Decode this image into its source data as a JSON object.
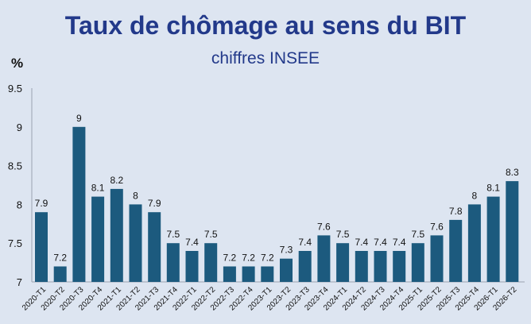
{
  "header": {
    "title": "Taux de chômage au sens du BIT",
    "subtitle": "chiffres INSEE",
    "unit": "%"
  },
  "colors": {
    "bar": "#1c5a7e",
    "title": "#22398a",
    "background": "#dde5f1"
  },
  "chart_data": {
    "type": "bar",
    "title": "Taux de chômage au sens du BIT",
    "subtitle": "chiffres INSEE",
    "xlabel": "",
    "ylabel": "%",
    "ylim": [
      7,
      9.5
    ],
    "yticks": [
      "7",
      "7.5",
      "8",
      "8.5",
      "9",
      "9.5"
    ],
    "grid": false,
    "legend": "none",
    "categories": [
      "2020-T1",
      "2020-T2",
      "2020-T3",
      "2020-T4",
      "2021-T1",
      "2021-T2",
      "2021-T3",
      "2021-T4",
      "2022-T1",
      "2022-T2",
      "2022-T3",
      "2022-T4",
      "2023-T1",
      "2023-T2",
      "2023-T3",
      "2023-T4",
      "2024-T1",
      "2024-T2",
      "2024-T3",
      "2024-T4",
      "2025-T1",
      "2025-T2",
      "2025-T3",
      "2025-T4",
      "2026-T1",
      "2026-T2"
    ],
    "values": [
      7.9,
      7.2,
      9,
      8.1,
      8.2,
      8,
      7.9,
      7.5,
      7.4,
      7.5,
      7.2,
      7.2,
      7.2,
      7.3,
      7.4,
      7.6,
      7.5,
      7.4,
      7.4,
      7.4,
      7.5,
      7.6,
      7.8,
      8,
      8.1,
      8.3
    ],
    "value_labels": [
      "7.9",
      "7.2",
      "9",
      "8.1",
      "8.2",
      "8",
      "7.9",
      "7.5",
      "7.4",
      "7.5",
      "7.2",
      "7.2",
      "7.2",
      "7.3",
      "7.4",
      "7.6",
      "7.5",
      "7.4",
      "7.4",
      "7.4",
      "7.5",
      "7.6",
      "7.8",
      "8",
      "8.1",
      "8.3"
    ]
  }
}
